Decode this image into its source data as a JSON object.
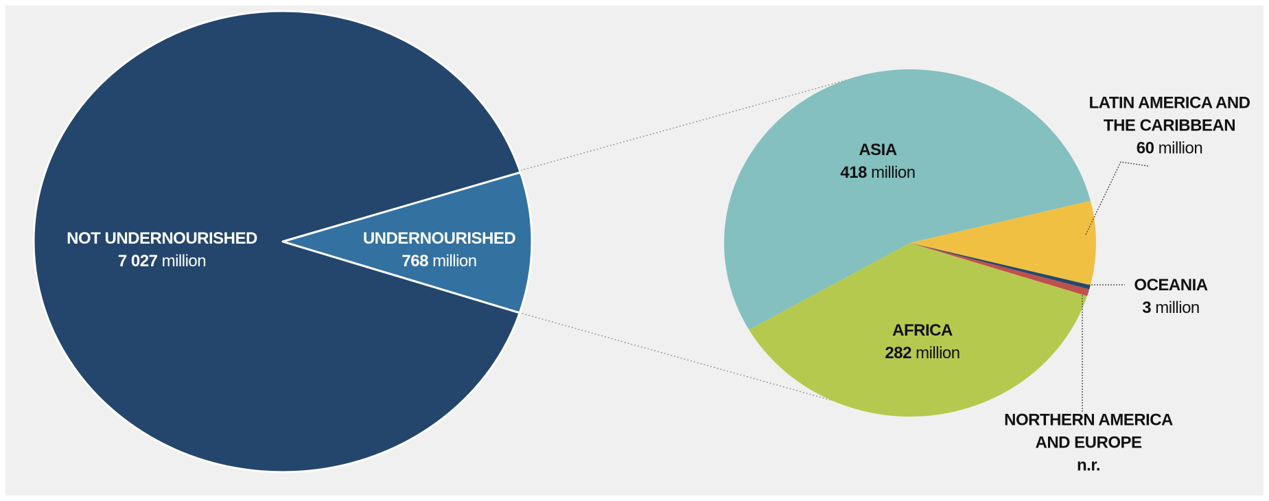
{
  "chart_data": [
    {
      "type": "pie",
      "categories": [
        "NOT UNDERNOURISHED",
        "UNDERNOURISHED"
      ],
      "values": [
        7027,
        768
      ],
      "value_labels": [
        "7 027",
        "768"
      ],
      "unit": "million",
      "colors": [
        "#24466d",
        "#3371a1"
      ]
    },
    {
      "type": "pie",
      "categories": [
        "ASIA",
        "LATIN AMERICA AND THE CARIBBEAN",
        "OCEANIA",
        "NORTHERN AMERICA AND EUROPE",
        "AFRICA"
      ],
      "values": [
        418,
        60,
        3,
        5,
        282
      ],
      "value_labels": [
        "418",
        "60",
        "3",
        "n.r.",
        "282"
      ],
      "unit": "million",
      "colors": [
        "#83c0bf",
        "#f0c043",
        "#23496f",
        "#c0504d",
        "#b6c94f"
      ]
    }
  ]
}
